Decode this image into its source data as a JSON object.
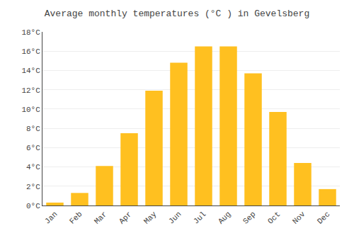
{
  "chart_data": {
    "type": "bar",
    "title": "Average monthly temperatures (°C ) in Gevelsberg",
    "categories": [
      "Jan",
      "Feb",
      "Mar",
      "Apr",
      "May",
      "Jun",
      "Jul",
      "Aug",
      "Sep",
      "Oct",
      "Nov",
      "Dec"
    ],
    "values": [
      0.3,
      1.3,
      4.1,
      7.5,
      11.9,
      14.8,
      16.5,
      16.5,
      13.7,
      9.7,
      4.4,
      1.7
    ],
    "color": "#FFC020",
    "ylim": [
      0,
      18
    ],
    "yticks": [
      {
        "value": 0,
        "label": "0°C"
      },
      {
        "value": 2,
        "label": "2°C"
      },
      {
        "value": 4,
        "label": "4°C"
      },
      {
        "value": 6,
        "label": "6°C"
      },
      {
        "value": 8,
        "label": "8°C"
      },
      {
        "value": 10,
        "label": "10°C"
      },
      {
        "value": 12,
        "label": "12°C"
      },
      {
        "value": 14,
        "label": "14°C"
      },
      {
        "value": 16,
        "label": "16°C"
      },
      {
        "value": 18,
        "label": "18°C"
      }
    ],
    "grid": true
  }
}
